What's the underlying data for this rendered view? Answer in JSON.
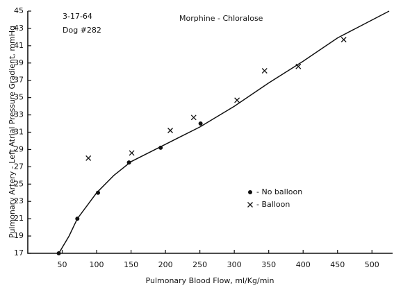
{
  "chart_data": {
    "type": "scatter",
    "annotations": [
      "3-17-64",
      "Dog #282",
      "Morphine - Chloralose"
    ],
    "xlabel": "Pulmonary Blood Flow, ml/Kg/min",
    "ylabel": "Pulmonary Artery - Left Atrial Pressure Gradient, mmHg",
    "xlim": [
      0,
      530
    ],
    "xticks": [
      50,
      100,
      150,
      200,
      250,
      300,
      350,
      400,
      450,
      500
    ],
    "ylim": [
      17,
      45
    ],
    "yticks": [
      17,
      19,
      21,
      23,
      25,
      27,
      29,
      31,
      33,
      35,
      37,
      39,
      41,
      43,
      45
    ],
    "series": [
      {
        "name": "- No balloon",
        "marker": "dot",
        "color": "#111111",
        "x": [
          45,
          72,
          102,
          147,
          193,
          251
        ],
        "values": [
          17,
          21,
          24,
          27.5,
          29.2,
          32
        ]
      },
      {
        "name": "- Balloon",
        "marker": "cross",
        "color": "#111111",
        "x": [
          88,
          151,
          207,
          241,
          304,
          344,
          393,
          459
        ],
        "values": [
          28,
          28.6,
          31.2,
          32.7,
          34.7,
          38.1,
          38.6,
          41.7
        ]
      }
    ],
    "curve": {
      "color": "#111111",
      "x": [
        45,
        60,
        72,
        100,
        125,
        150,
        200,
        250,
        300,
        350,
        400,
        450,
        525
      ],
      "values": [
        17,
        19,
        21,
        24,
        26,
        27.6,
        29.6,
        31.6,
        34,
        36.7,
        39.2,
        41.9,
        45
      ]
    }
  }
}
